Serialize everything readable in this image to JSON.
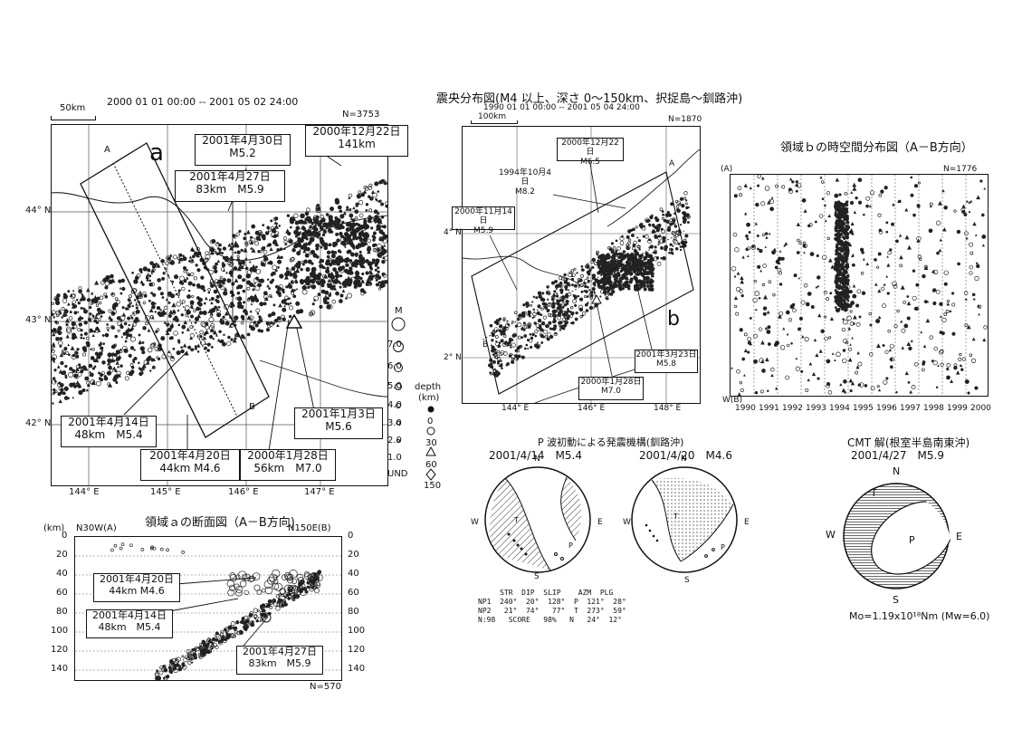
{
  "map_main": {
    "period": "2000 01 01 00:00 -- 2001 05 02 24:00",
    "scale": "50km",
    "count": "N=3753",
    "region_label": "a",
    "point_labels": [
      "A",
      "B"
    ],
    "lat_labels": [
      "44° N",
      "43° N",
      "42° N"
    ],
    "lon_labels": [
      "144° E",
      "145° E",
      "146° E",
      "147° E"
    ],
    "callouts": [
      {
        "l1": "2001年4月30日",
        "l2": "M5.2"
      },
      {
        "l1": "2001年4月27日",
        "l2": "83km　M5.9"
      },
      {
        "l1": "2000年12月22日",
        "l2": "141km"
      },
      {
        "l1": "2001年4月14日",
        "l2": "48km　M5.4"
      },
      {
        "l1": "2001年4月20日",
        "l2": "44km M4.6"
      },
      {
        "l1": "2000年1月28日",
        "l2": "56km　M7.0"
      },
      {
        "l1": "2001年1月3日",
        "l2": "M5.6"
      }
    ],
    "mag_title": "M",
    "mag_values": [
      "7.0",
      "6.0",
      "5.0",
      "4.0",
      "3.0",
      "2.0",
      "1.0",
      "UND"
    ],
    "depth_title": "depth",
    "depth_unit": "(km)",
    "depth_values": [
      "0",
      "30",
      "60",
      "150"
    ]
  },
  "cross_section": {
    "title": "領域ａの断面図（A－B方向)",
    "ylabel": "(km)",
    "left_dir": "N30W(A)",
    "right_dir": "N150E(B)",
    "depth_ticks": [
      "0",
      "20",
      "40",
      "60",
      "80",
      "100",
      "120",
      "140"
    ],
    "count": "N=570",
    "callouts": [
      {
        "l1": "2001年4月20日",
        "l2": "44km M4.6"
      },
      {
        "l1": "2001年4月14日",
        "l2": "48km　M5.4"
      },
      {
        "l1": "2001年4月27日",
        "l2": "83km　M5.9"
      }
    ]
  },
  "map_mid": {
    "title": "震央分布図(M4 以上、深さ 0～150km、択捉島～釧路沖)",
    "period": "1990 01 01 00:00 -- 2001 05 04 24:00",
    "scale": "100km",
    "count": "N=1870",
    "region_label": "b",
    "point_labels": [
      "A",
      "B"
    ],
    "lat_labels": [
      "4° N",
      "2° N"
    ],
    "lon_labels": [
      "144° E",
      "146° E",
      "148° E"
    ],
    "callouts": [
      {
        "l1": "2000年12月22日",
        "l2": "M6.5"
      },
      {
        "l1": "1994年10月4日",
        "l2": "M8.2"
      },
      {
        "l1": "2000年11月14日",
        "l2": "M5.9"
      },
      {
        "l1": "2001年3月23日",
        "l2": "M5.8"
      },
      {
        "l1": "2000年1月28日",
        "l2": "M7.0"
      }
    ]
  },
  "spacetime": {
    "title": "領域ｂの時空間分布図（A－B方向）",
    "count": "N=1776",
    "top_label": "(A)",
    "bottom_label": "W(B)",
    "years": [
      "1990",
      "1991",
      "1992",
      "1993",
      "1994",
      "1995",
      "1996",
      "1997",
      "1998",
      "1999",
      "2000"
    ]
  },
  "mech": {
    "title": "P 波初動による発震機構(釧路沖)",
    "events": [
      {
        "label": "2001/4/14　M5.4"
      },
      {
        "label": "2001/4/20　M4.6"
      }
    ],
    "directions": [
      "N",
      "E",
      "S",
      "W"
    ],
    "axis_labels": [
      "T",
      "P"
    ],
    "table": [
      "     STR  DIP  SLIP    AZM  PLG",
      "NP1  240°  20°  128°  P  121°  28°",
      "NP2   21°  74°   77°  T  273°  59°",
      "N:98   SCORE   98%   N   24°  12°"
    ]
  },
  "cmt": {
    "title": "CMT 解(根室半島南東沖)",
    "subtitle": "2001/4/27　M5.9",
    "directions": [
      "N",
      "E",
      "S",
      "W"
    ],
    "axis_labels": [
      "T",
      "P"
    ],
    "moment": "Mo=1.19x10¹⁸Nm (Mw=6.0)"
  }
}
